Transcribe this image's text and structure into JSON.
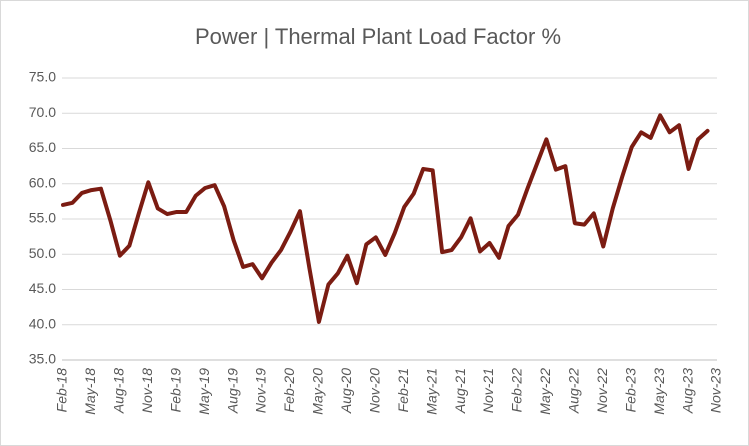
{
  "chart_data": {
    "type": "line",
    "title": "Power | Thermal Plant Load Factor %",
    "categories": [
      "Feb-18",
      null,
      null,
      "May-18",
      null,
      null,
      "Aug-18",
      null,
      null,
      "Nov-18",
      null,
      null,
      "Feb-19",
      null,
      null,
      "May-19",
      null,
      null,
      "Aug-19",
      null,
      null,
      "Nov-19",
      null,
      null,
      "Feb-20",
      null,
      null,
      "May-20",
      null,
      null,
      "Aug-20",
      null,
      null,
      "Nov-20",
      null,
      null,
      "Feb-21",
      null,
      null,
      "May-21",
      null,
      null,
      "Aug-21",
      null,
      null,
      "Nov-21",
      null,
      null,
      "Feb-22",
      null,
      null,
      "May-22",
      null,
      null,
      "Aug-22",
      null,
      null,
      "Nov-22",
      null,
      null,
      "Feb-23",
      null,
      null,
      "May-23",
      null,
      null,
      "Aug-23",
      null,
      null,
      "Nov-23"
    ],
    "series": [
      {
        "color": "#7b1c12",
        "values": [
          57.0,
          57.3,
          58.7,
          59.1,
          59.3,
          54.8,
          49.8,
          51.2,
          55.8,
          60.2,
          56.5,
          55.7,
          56.0,
          56.0,
          58.3,
          59.4,
          59.8,
          56.8,
          52.0,
          48.2,
          48.6,
          46.6,
          48.8,
          50.6,
          53.2,
          56.1,
          48.0,
          40.4,
          45.7,
          47.3,
          49.8,
          45.9,
          51.4,
          52.4,
          49.9,
          53.0,
          56.7,
          58.6,
          62.1,
          61.9,
          50.3,
          50.6,
          52.4,
          55.1,
          50.4,
          51.6,
          49.5,
          54.0,
          55.6,
          59.3,
          62.8,
          66.3,
          62.0,
          62.5,
          54.4,
          54.2,
          55.8,
          51.1,
          56.5,
          61.0,
          65.2,
          67.3,
          66.5,
          69.7,
          67.3,
          68.3,
          62.1,
          66.3,
          67.5,
          null
        ]
      }
    ],
    "ylim": [
      35,
      75
    ],
    "yticks": [
      {
        "value": 35,
        "label": "35.0"
      },
      {
        "value": 40,
        "label": "40.0"
      },
      {
        "value": 45,
        "label": "45.0"
      },
      {
        "value": 50,
        "label": "50.0"
      },
      {
        "value": 55,
        "label": "55.0"
      },
      {
        "value": 60,
        "label": "60.0"
      },
      {
        "value": 65,
        "label": "65.0"
      },
      {
        "value": 70,
        "label": "70.0"
      },
      {
        "value": 75,
        "label": "75.0"
      }
    ],
    "grid": true
  }
}
